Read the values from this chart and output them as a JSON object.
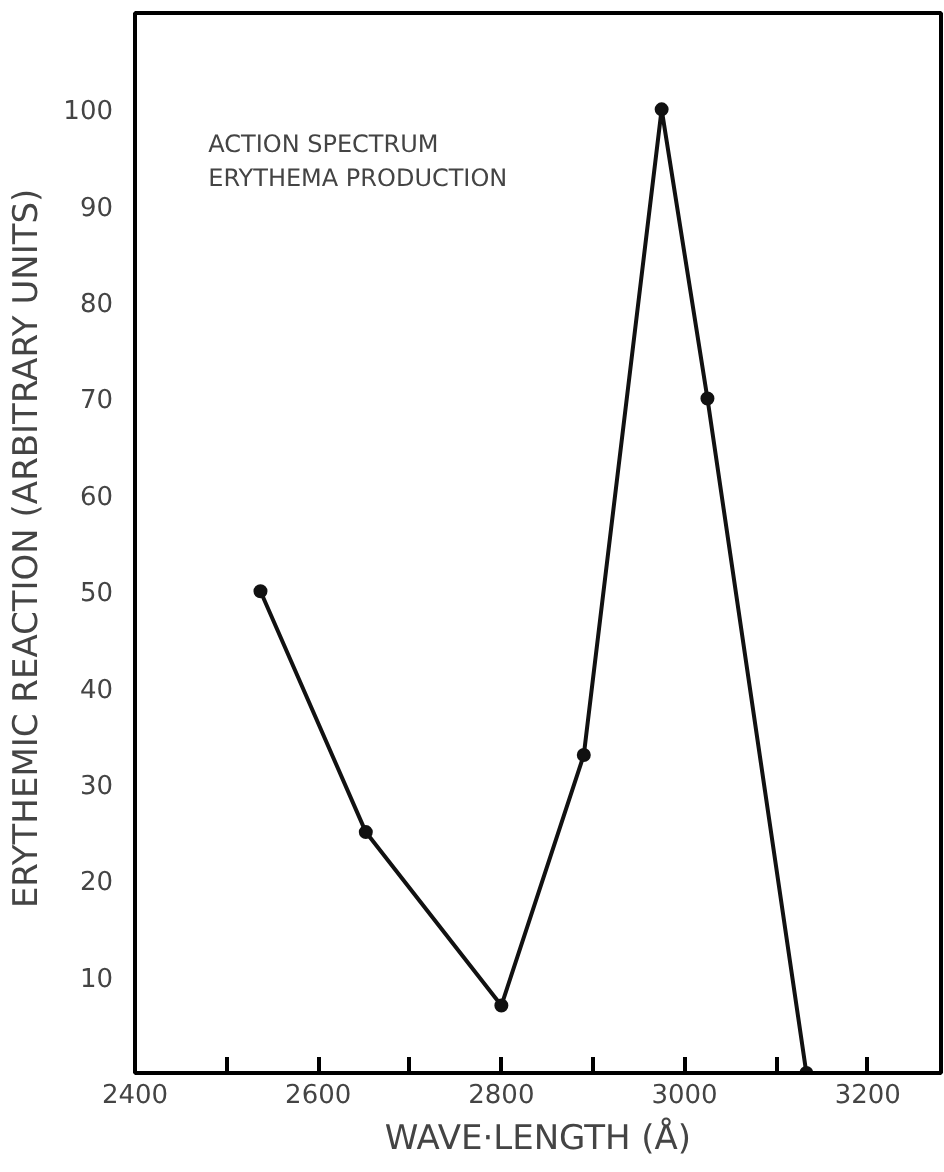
{
  "chart_data": {
    "type": "line",
    "xlabel": "WAVE·LENGTH (Å)",
    "ylabel": "ERYTHEMIC  REACTION (ARBITRARY UNITS)",
    "annotations": [
      "ACTION SPECTRUM\nERYTHEMA PRODUCTION"
    ],
    "x": [
      2537,
      2652,
      2800,
      2890,
      2975,
      3025,
      3133
    ],
    "series": [
      {
        "color": "#111111",
        "values": [
          50,
          25,
          7,
          33,
          100,
          70,
          0
        ]
      }
    ],
    "xlim": [
      2400,
      3280
    ],
    "ylim": [
      0,
      110
    ],
    "xticks": [
      2400,
      {
        "value": 2500,
        "label": null
      },
      2600,
      {
        "value": 2700,
        "label": null
      },
      2800,
      {
        "value": 2900,
        "label": null
      },
      3000,
      {
        "value": 3100,
        "label": null
      },
      3200
    ],
    "yticks": [
      10,
      20,
      30,
      40,
      50,
      60,
      70,
      80,
      90,
      100
    ],
    "marker": "circle",
    "line_style": "solid",
    "grid": false
  }
}
